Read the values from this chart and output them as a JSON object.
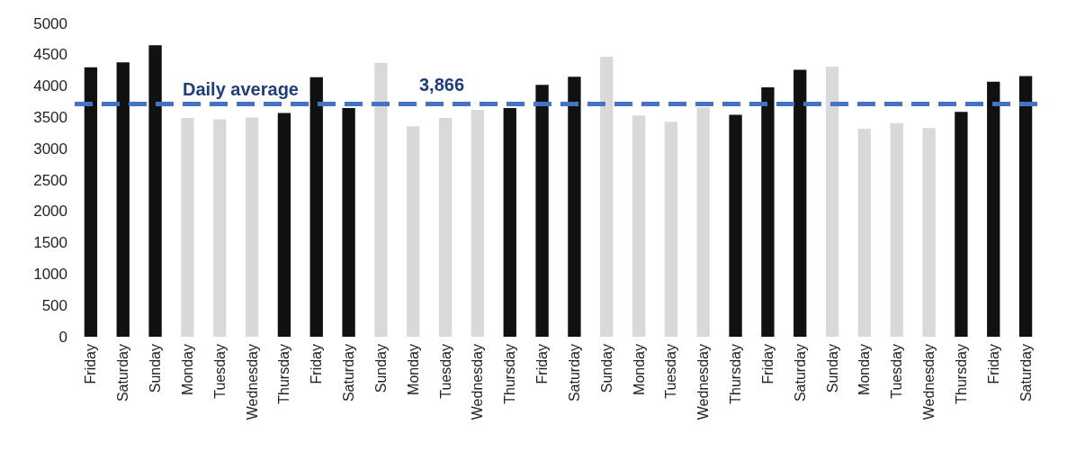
{
  "chart_data": {
    "type": "bar",
    "categories": [
      "Friday",
      "Saturday",
      "Sunday",
      "Monday",
      "Tuesday",
      "Wednesday",
      "Thursday",
      "Friday",
      "Saturday",
      "Sunday",
      "Monday",
      "Tuesday",
      "Wednesday",
      "Thursday",
      "Friday",
      "Saturday",
      "Sunday",
      "Monday",
      "Tuesday",
      "Wednesday",
      "Thursday",
      "Friday",
      "Saturday",
      "Sunday",
      "Monday",
      "Tuesday",
      "Wednesday",
      "Thursday",
      "Friday",
      "Saturday"
    ],
    "values": [
      4300,
      4380,
      4650,
      3490,
      3470,
      3500,
      3570,
      4140,
      3650,
      4370,
      3360,
      3490,
      3620,
      3650,
      4020,
      4150,
      4470,
      3530,
      3430,
      3660,
      3540,
      3980,
      4260,
      4310,
      3320,
      3410,
      3330,
      3590,
      4070,
      4160
    ],
    "colors": [
      "#111111",
      "#111111",
      "#111111",
      "#d9d9d9",
      "#d9d9d9",
      "#d9d9d9",
      "#111111",
      "#111111",
      "#111111",
      "#d9d9d9",
      "#d9d9d9",
      "#d9d9d9",
      "#d9d9d9",
      "#111111",
      "#111111",
      "#111111",
      "#d9d9d9",
      "#d9d9d9",
      "#d9d9d9",
      "#d9d9d9",
      "#111111",
      "#111111",
      "#111111",
      "#d9d9d9",
      "#d9d9d9",
      "#d9d9d9",
      "#d9d9d9",
      "#111111",
      "#111111",
      "#111111"
    ],
    "ylim": [
      0,
      5000
    ],
    "yticks": [
      0,
      500,
      1000,
      1500,
      2000,
      2500,
      3000,
      3500,
      4000,
      4500,
      5000
    ],
    "grid": false,
    "ref_lines": [
      {
        "axis": "y",
        "value": 3720,
        "label": "Daily average",
        "color": "#4472c4",
        "line_style": "dashed"
      }
    ],
    "annotations": [
      "3,866"
    ]
  }
}
